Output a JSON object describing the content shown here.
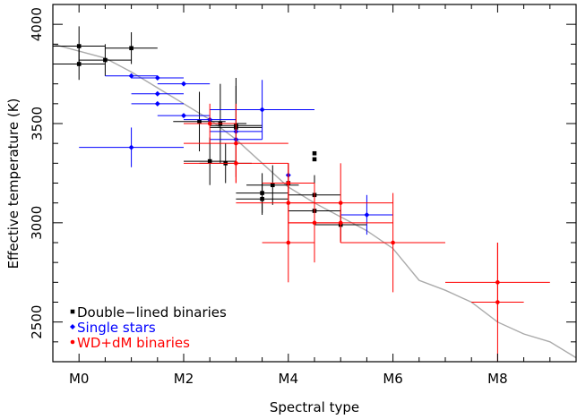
{
  "chart_data": {
    "type": "scatter",
    "title": "",
    "xlabel": "Spectral type",
    "ylabel": "Effective temperature (K)",
    "xlim": [
      -0.5,
      9.5
    ],
    "ylim": [
      2300,
      4100
    ],
    "xticks": [
      {
        "value": 0,
        "label": "M0"
      },
      {
        "value": 2,
        "label": "M2"
      },
      {
        "value": 4,
        "label": "M4"
      },
      {
        "value": 6,
        "label": "M6"
      },
      {
        "value": 8,
        "label": "M8"
      }
    ],
    "yticks": [
      {
        "value": 2500,
        "label": "2500"
      },
      {
        "value": 3000,
        "label": "3000"
      },
      {
        "value": 3500,
        "label": "3500"
      },
      {
        "value": 4000,
        "label": "4000"
      }
    ],
    "grid": false,
    "legend": "bottom-left",
    "reference_curve": {
      "color": "#aaaaaa",
      "x": [
        -0.5,
        0.5,
        1.0,
        1.5,
        2.0,
        2.5,
        3.0,
        3.5,
        4.0,
        4.5,
        5.0,
        5.5,
        6.0,
        6.5,
        7.0,
        7.5,
        8.0,
        8.5,
        9.0,
        9.5
      ],
      "y": [
        3900,
        3830,
        3760,
        3680,
        3600,
        3520,
        3420,
        3300,
        3180,
        3100,
        3030,
        2960,
        2870,
        2710,
        2660,
        2600,
        2500,
        2440,
        2400,
        2320
      ]
    },
    "series": [
      {
        "name": "Double−lined binaries",
        "color": "#000000",
        "marker": "square",
        "points": [
          {
            "x": 0.0,
            "y": 3890,
            "xerr": 0.5,
            "yerr": 100
          },
          {
            "x": 0.0,
            "y": 3800,
            "xerr": 0.5,
            "yerr": 80
          },
          {
            "x": 0.5,
            "y": 3820,
            "xerr": 0.5,
            "yerr": 80
          },
          {
            "x": 1.0,
            "y": 3880,
            "xerr": 0.5,
            "yerr": 80
          },
          {
            "x": 2.3,
            "y": 3510,
            "xerr": 0.5,
            "yerr": 150
          },
          {
            "x": 2.5,
            "y": 3310,
            "xerr": 0.5,
            "yerr": 120
          },
          {
            "x": 2.8,
            "y": 3300,
            "xerr": 0.5,
            "yerr": 100
          },
          {
            "x": 2.7,
            "y": 3500,
            "xerr": 0.5,
            "yerr": 200
          },
          {
            "x": 3.0,
            "y": 3490,
            "xerr": 0.5,
            "yerr": 200
          },
          {
            "x": 3.0,
            "y": 3480,
            "xerr": 0.5,
            "yerr": 250
          },
          {
            "x": 3.5,
            "y": 3150,
            "xerr": 0.5,
            "yerr": 100
          },
          {
            "x": 3.5,
            "y": 3120,
            "xerr": 0.5,
            "yerr": 80
          },
          {
            "x": 3.7,
            "y": 3190,
            "xerr": 0.5,
            "yerr": 100
          },
          {
            "x": 4.0,
            "y": 3200,
            "xerr": 0.5,
            "yerr": 100
          },
          {
            "x": 4.5,
            "y": 3140,
            "xerr": 0.5,
            "yerr": 100
          },
          {
            "x": 4.5,
            "y": 3060,
            "xerr": 0.5,
            "yerr": 80
          },
          {
            "x": 4.5,
            "y": 3350,
            "xerr": 0.0,
            "yerr": 0
          },
          {
            "x": 4.5,
            "y": 3320,
            "xerr": 0.0,
            "yerr": 0
          },
          {
            "x": 5.0,
            "y": 2990,
            "xerr": 0.5,
            "yerr": 80
          }
        ]
      },
      {
        "name": "Single stars",
        "color": "#0000ff",
        "marker": "diamond",
        "points": [
          {
            "x": 1.0,
            "y": 3740,
            "xerr": 0.5,
            "yerr": 0
          },
          {
            "x": 1.5,
            "y": 3730,
            "xerr": 0.5,
            "yerr": 0
          },
          {
            "x": 2.0,
            "y": 3700,
            "xerr": 0.5,
            "yerr": 0
          },
          {
            "x": 1.5,
            "y": 3650,
            "xerr": 0.5,
            "yerr": 0
          },
          {
            "x": 1.5,
            "y": 3600,
            "xerr": 0.5,
            "yerr": 0
          },
          {
            "x": 2.0,
            "y": 3540,
            "xerr": 0.5,
            "yerr": 0
          },
          {
            "x": 2.5,
            "y": 3520,
            "xerr": 0.5,
            "yerr": 0
          },
          {
            "x": 1.0,
            "y": 3380,
            "xerr": 1.0,
            "yerr": 100
          },
          {
            "x": 3.0,
            "y": 3460,
            "xerr": 0.5,
            "yerr": 0
          },
          {
            "x": 3.0,
            "y": 3420,
            "xerr": 0.5,
            "yerr": 0
          },
          {
            "x": 3.5,
            "y": 3570,
            "xerr": 1.0,
            "yerr": 150
          },
          {
            "x": 4.0,
            "y": 3240,
            "xerr": 0.0,
            "yerr": 0
          },
          {
            "x": 5.5,
            "y": 3040,
            "xerr": 0.5,
            "yerr": 100
          }
        ]
      },
      {
        "name": "WD+dM binaries",
        "color": "#ff0000",
        "marker": "circle",
        "points": [
          {
            "x": 2.5,
            "y": 3500,
            "xerr": 0.5,
            "yerr": 100
          },
          {
            "x": 3.0,
            "y": 3400,
            "xerr": 1.0,
            "yerr": 200
          },
          {
            "x": 3.0,
            "y": 3300,
            "xerr": 1.0,
            "yerr": 100
          },
          {
            "x": 4.0,
            "y": 3100,
            "xerr": 1.0,
            "yerr": 200
          },
          {
            "x": 4.0,
            "y": 3200,
            "xerr": 0.5,
            "yerr": 100
          },
          {
            "x": 4.0,
            "y": 2900,
            "xerr": 0.5,
            "yerr": 200
          },
          {
            "x": 4.5,
            "y": 3000,
            "xerr": 0.5,
            "yerr": 200
          },
          {
            "x": 5.0,
            "y": 3100,
            "xerr": 1.0,
            "yerr": 200
          },
          {
            "x": 5.0,
            "y": 3000,
            "xerr": 1.0,
            "yerr": 100
          },
          {
            "x": 6.0,
            "y": 2900,
            "xerr": 1.0,
            "yerr": 250
          },
          {
            "x": 8.0,
            "y": 2700,
            "xerr": 1.0,
            "yerr": 200
          },
          {
            "x": 8.0,
            "y": 2600,
            "xerr": 0.5,
            "yerr": 300
          }
        ]
      }
    ]
  }
}
